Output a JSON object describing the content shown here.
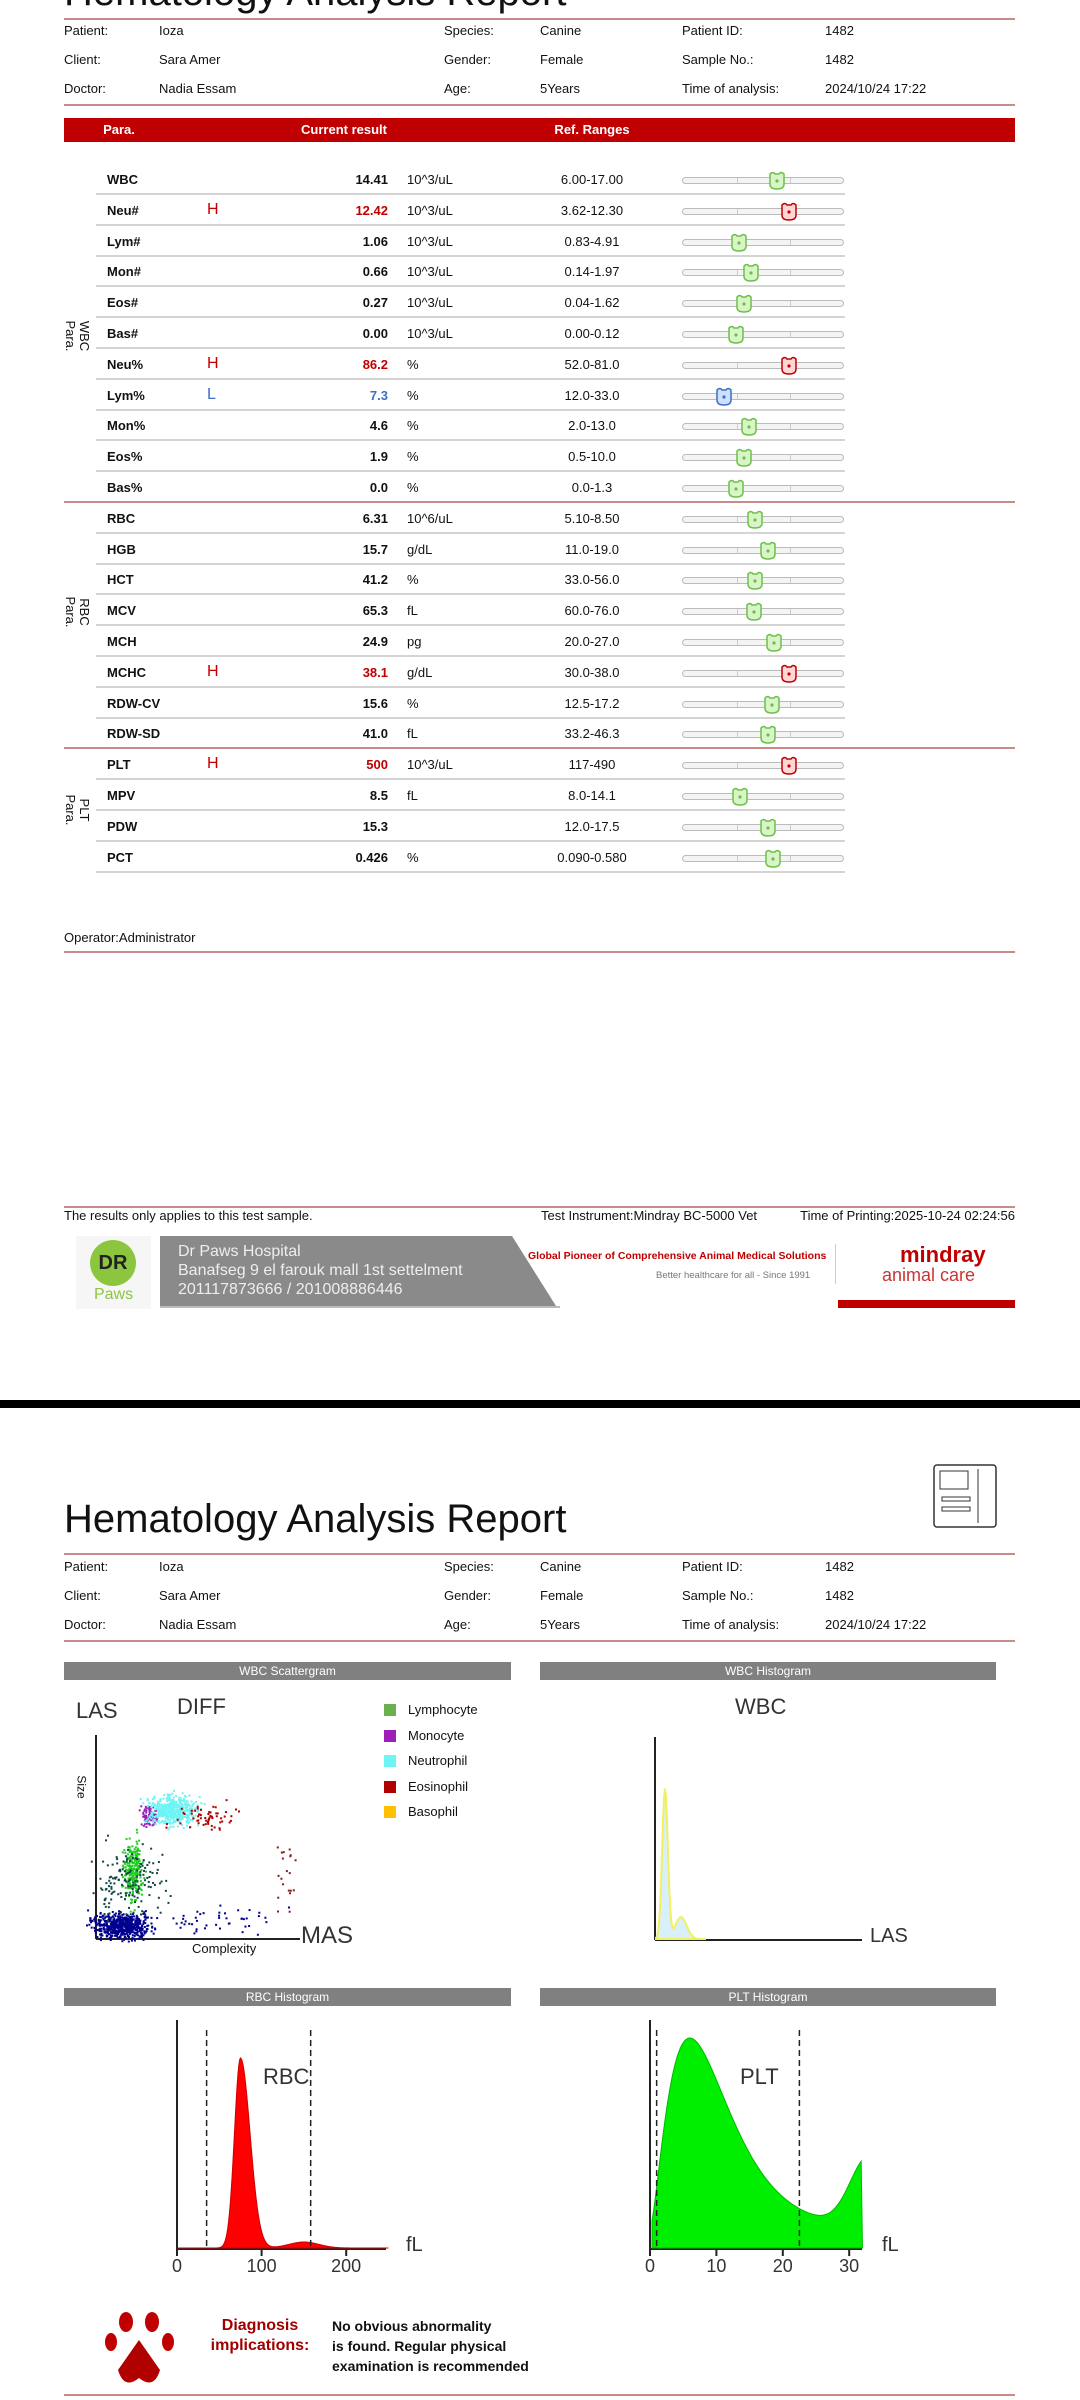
{
  "report": {
    "title": "Hematology Analysis Report"
  },
  "info": {
    "labels": [
      "Patient:",
      "Client:",
      "Doctor:",
      "Species:",
      "Gender:",
      "Age:",
      "Patient ID:",
      "Sample No.:",
      "Time of analysis:"
    ],
    "values": [
      "Ioza",
      "Sara Amer",
      "Nadia Essam",
      "Canine",
      "Female",
      "5Years",
      "1482",
      "1482",
      "2024/10/24 17:22"
    ]
  },
  "table": {
    "headers": [
      "Para.",
      "Current result",
      "Ref. Ranges"
    ],
    "groups": [
      {
        "label1": "WBC",
        "label2": "Para."
      },
      {
        "label1": "RBC",
        "label2": "Para."
      },
      {
        "label1": "PLT",
        "label2": "Para."
      }
    ],
    "rows": [
      {
        "name": "WBC",
        "flag": "",
        "result": "14.41",
        "unit": "10^3/uL",
        "range": "6.00-17.00",
        "lo": 6,
        "hi": 17,
        "v": 14.41
      },
      {
        "name": "Neu#",
        "flag": "H",
        "result": "12.42",
        "unit": "10^3/uL",
        "range": "3.62-12.30",
        "lo": 3.62,
        "hi": 12.3,
        "v": 12.42
      },
      {
        "name": "Lym#",
        "flag": "",
        "result": "1.06",
        "unit": "10^3/uL",
        "range": "0.83-4.91",
        "lo": 0.83,
        "hi": 4.91,
        "v": 1.06
      },
      {
        "name": "Mon#",
        "flag": "",
        "result": "0.66",
        "unit": "10^3/uL",
        "range": "0.14-1.97",
        "lo": 0.14,
        "hi": 1.97,
        "v": 0.66
      },
      {
        "name": "Eos#",
        "flag": "",
        "result": "0.27",
        "unit": "10^3/uL",
        "range": "0.04-1.62",
        "lo": 0.04,
        "hi": 1.62,
        "v": 0.27
      },
      {
        "name": "Bas#",
        "flag": "",
        "result": "0.00",
        "unit": "10^3/uL",
        "range": "0.00-0.12",
        "lo": 0,
        "hi": 0.12,
        "v": 0
      },
      {
        "name": "Neu%",
        "flag": "H",
        "result": "86.2",
        "unit": "%",
        "range": "52.0-81.0",
        "lo": 52,
        "hi": 81,
        "v": 86.2
      },
      {
        "name": "Lym%",
        "flag": "L",
        "result": "7.3",
        "unit": "%",
        "range": "12.0-33.0",
        "lo": 12,
        "hi": 33,
        "v": 7.3
      },
      {
        "name": "Mon%",
        "flag": "",
        "result": "4.6",
        "unit": "%",
        "range": "2.0-13.0",
        "lo": 2,
        "hi": 13,
        "v": 4.6
      },
      {
        "name": "Eos%",
        "flag": "",
        "result": "1.9",
        "unit": "%",
        "range": "0.5-10.0",
        "lo": 0.5,
        "hi": 10,
        "v": 1.9
      },
      {
        "name": "Bas%",
        "flag": "",
        "result": "0.0",
        "unit": "%",
        "range": "0.0-1.3",
        "lo": 0,
        "hi": 1.3,
        "v": 0
      },
      {
        "name": "RBC",
        "flag": "",
        "result": "6.31",
        "unit": "10^6/uL",
        "range": "5.10-8.50",
        "lo": 5.1,
        "hi": 8.5,
        "v": 6.31
      },
      {
        "name": "HGB",
        "flag": "",
        "result": "15.7",
        "unit": "g/dL",
        "range": "11.0-19.0",
        "lo": 11,
        "hi": 19,
        "v": 15.7
      },
      {
        "name": "HCT",
        "flag": "",
        "result": "41.2",
        "unit": "%",
        "range": "33.0-56.0",
        "lo": 33,
        "hi": 56,
        "v": 41.2
      },
      {
        "name": "MCV",
        "flag": "",
        "result": "65.3",
        "unit": "fL",
        "range": "60.0-76.0",
        "lo": 60,
        "hi": 76,
        "v": 65.3
      },
      {
        "name": "MCH",
        "flag": "",
        "result": "24.9",
        "unit": "pg",
        "range": "20.0-27.0",
        "lo": 20,
        "hi": 27,
        "v": 24.9
      },
      {
        "name": "MCHC",
        "flag": "H",
        "result": "38.1",
        "unit": "g/dL",
        "range": "30.0-38.0",
        "lo": 30,
        "hi": 38,
        "v": 38.1
      },
      {
        "name": "RDW-CV",
        "flag": "",
        "result": "15.6",
        "unit": "%",
        "range": "12.5-17.2",
        "lo": 12.5,
        "hi": 17.2,
        "v": 15.6
      },
      {
        "name": "RDW-SD",
        "flag": "",
        "result": "41.0",
        "unit": "fL",
        "range": "33.2-46.3",
        "lo": 33.2,
        "hi": 46.3,
        "v": 41
      },
      {
        "name": "PLT",
        "flag": "H",
        "result": "500",
        "unit": "10^3/uL",
        "range": "117-490",
        "lo": 117,
        "hi": 490,
        "v": 500
      },
      {
        "name": "MPV",
        "flag": "",
        "result": "8.5",
        "unit": "fL",
        "range": "8.0-14.1",
        "lo": 8,
        "hi": 14.1,
        "v": 8.5
      },
      {
        "name": "PDW",
        "flag": "",
        "result": "15.3",
        "unit": "",
        "range": "12.0-17.5",
        "lo": 12,
        "hi": 17.5,
        "v": 15.3
      },
      {
        "name": "PCT",
        "flag": "",
        "result": "0.426",
        "unit": "%",
        "range": "0.090-0.580",
        "lo": 0.09,
        "hi": 0.58,
        "v": 0.426
      }
    ]
  },
  "colors": {
    "accent": "#c00000",
    "high": "#c00000",
    "low": "#3a6fc4",
    "normal_marker": "#8fd16a"
  },
  "operator": "Operator:Administrator",
  "footer": {
    "note": "The results only applies to this test sample.",
    "instrument": "Test Instrument:Mindray BC-5000 Vet",
    "printed": "Time of Printing:2025-10-24 02:24:56"
  },
  "banner": {
    "hospital": "Dr Paws Hospital",
    "address": "Banafseg 9 el farouk mall 1st settelment",
    "phones": "201117873666 / 201008886446",
    "slogan": "Global Pioneer of Comprehensive Animal Medical Solutions",
    "tagline": "Better healthcare for all  -  Since 1991",
    "brand1": "mindray",
    "brand2": "animal care",
    "logo_text": "DR Paws"
  },
  "chart_data": [
    {
      "type": "scatter",
      "panel_title": "WBC Scattergram",
      "title": "DIFF",
      "xlabel": "Complexity",
      "ylabel": "Size",
      "x_axis_name": "MAS",
      "y_axis_name": "LAS",
      "legend": [
        {
          "name": "Lymphocyte",
          "color": "#6ab04c"
        },
        {
          "name": "Monocyte",
          "color": "#9b1fb8"
        },
        {
          "name": "Neutrophil",
          "color": "#6ff4f4"
        },
        {
          "name": "Eosinophil",
          "color": "#b00000"
        },
        {
          "name": "Basophil",
          "color": "#ffc000"
        }
      ],
      "legend_position": "right"
    },
    {
      "type": "area",
      "panel_title": "WBC Histogram",
      "title": "WBC",
      "x_axis_name": "LAS"
    },
    {
      "type": "area",
      "panel_title": "RBC Histogram",
      "title": "RBC",
      "xunit": "fL",
      "xticks": [
        "0",
        "100",
        "200"
      ],
      "xlim": [
        0,
        250
      ],
      "peak_x": 75,
      "dividers": [
        35,
        158
      ],
      "color": "#ff0000"
    },
    {
      "type": "area",
      "panel_title": "PLT Histogram",
      "title": "PLT",
      "xunit": "fL",
      "xticks": [
        "0",
        "10",
        "20",
        "30"
      ],
      "xlim": [
        0,
        32
      ],
      "peak_x": 6,
      "dividers": [
        1,
        22.5
      ],
      "color": "#00ee00"
    }
  ],
  "diagnosis": {
    "label1": "Diagnosis",
    "label2": "implications:",
    "lines": [
      "No obvious abnormality",
      "is found. Regular physical",
      "examination is recommended"
    ]
  }
}
